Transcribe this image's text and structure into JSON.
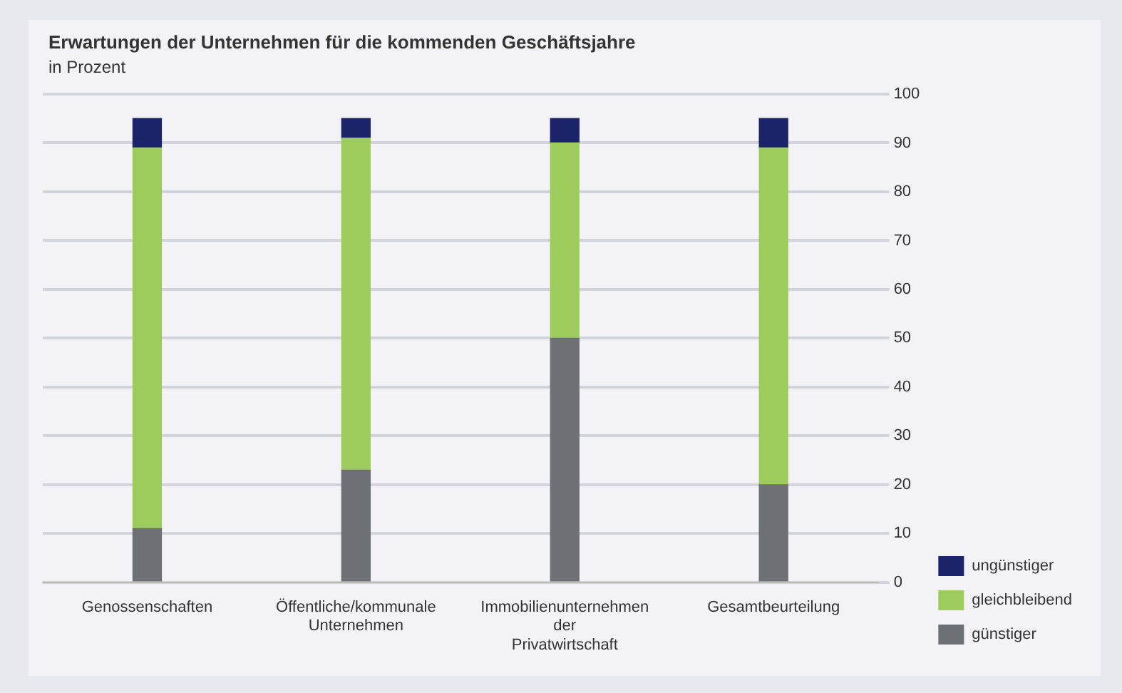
{
  "chart_data": {
    "type": "bar",
    "title": "Erwartungen der Unternehmen für die kommenden Geschäftsjahre",
    "subtitle": "in Prozent",
    "categories": [
      "Genossenschaften",
      "Öffentliche/kommunale Unternehmen",
      "Immobilienunternehmen der Privatwirtschaft",
      "Gesamtbeurteilung"
    ],
    "stacked": true,
    "series": [
      {
        "name": "günstiger",
        "color": "#6d7176",
        "values": [
          11,
          23,
          50,
          20
        ]
      },
      {
        "name": "gleichbleibend",
        "color": "#9dcc5c",
        "values": [
          78,
          68,
          40,
          69
        ]
      },
      {
        "name": "ungünstiger",
        "color": "#1b2468",
        "values": [
          6,
          4,
          5,
          6
        ]
      }
    ],
    "ylim": [
      0,
      100
    ],
    "yticks": [
      0,
      10,
      20,
      30,
      40,
      50,
      60,
      70,
      80,
      90,
      100
    ],
    "grid": "y",
    "legend": "right"
  }
}
